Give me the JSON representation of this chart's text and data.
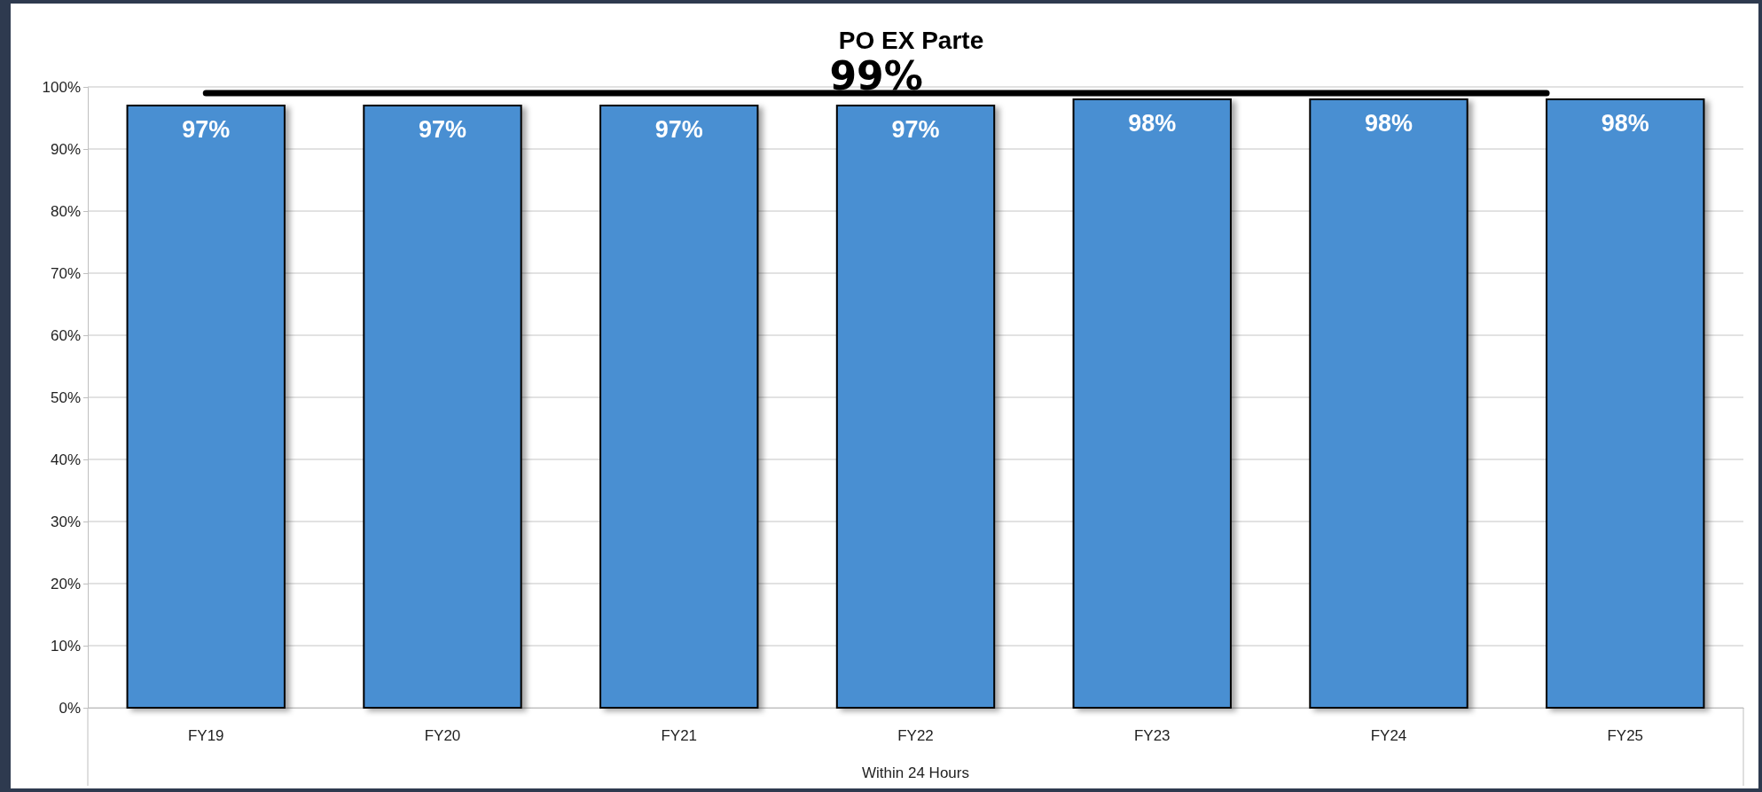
{
  "chart_data": {
    "type": "bar",
    "title": "PO EX Parte",
    "xlabel": "Within 24 Hours",
    "categories": [
      "FY19",
      "FY20",
      "FY21",
      "FY22",
      "FY23",
      "FY24",
      "FY25"
    ],
    "values": [
      97,
      97,
      97,
      97,
      98,
      98,
      98
    ],
    "color": "#4a8fd2",
    "value_labels": [
      "97%",
      "97%",
      "97%",
      "97%",
      "98%",
      "98%",
      "98%"
    ],
    "ylim": [
      0,
      100
    ],
    "yticks": [
      {
        "value": 0,
        "label": "0%"
      },
      {
        "value": 10,
        "label": "10%"
      },
      {
        "value": 20,
        "label": "20%"
      },
      {
        "value": 30,
        "label": "30%"
      },
      {
        "value": 40,
        "label": "40%"
      },
      {
        "value": 50,
        "label": "50%"
      },
      {
        "value": 60,
        "label": "60%"
      },
      {
        "value": 70,
        "label": "70%"
      },
      {
        "value": 80,
        "label": "80%"
      },
      {
        "value": 90,
        "label": "90%"
      },
      {
        "value": 100,
        "label": "100%"
      }
    ],
    "grid": "y",
    "ref_lines": [
      {
        "axis": "y",
        "value": 99,
        "label": "99%",
        "color": "#000000"
      }
    ]
  }
}
